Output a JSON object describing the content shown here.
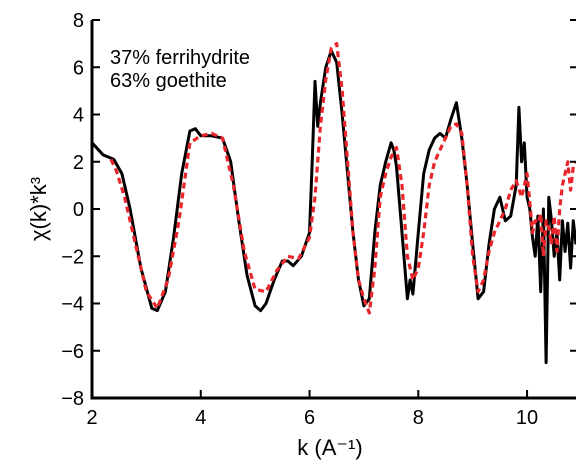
{
  "chart_data": {
    "type": "line",
    "xlabel": "k (A⁻¹)",
    "ylabel": "χ(k)*k³",
    "xlim": [
      2,
      10.9
    ],
    "ylim": [
      -8,
      8
    ],
    "x_ticks": [
      "2",
      "4",
      "6",
      "8",
      "10"
    ],
    "y_ticks": [
      "−8",
      "−6",
      "−4",
      "−2",
      "0",
      "2",
      "4",
      "6",
      "8"
    ],
    "annotations": [
      "37% ferrihydrite",
      "63% goethite"
    ],
    "grid": false,
    "series": [
      {
        "color": "#000000",
        "style": "solid",
        "x": [
          2.0,
          2.2,
          2.4,
          2.55,
          2.7,
          2.9,
          3.1,
          3.2,
          3.35,
          3.5,
          3.65,
          3.8,
          3.9,
          4.0,
          4.2,
          4.4,
          4.55,
          4.7,
          4.85,
          5.0,
          5.1,
          5.2,
          5.35,
          5.5,
          5.6,
          5.7,
          5.85,
          6.0,
          6.05,
          6.1,
          6.15,
          6.2,
          6.3,
          6.4,
          6.5,
          6.6,
          6.7,
          6.8,
          6.9,
          7.0,
          7.1,
          7.2,
          7.3,
          7.4,
          7.5,
          7.55,
          7.6,
          7.7,
          7.8,
          7.85,
          7.9,
          8.0,
          8.1,
          8.2,
          8.3,
          8.4,
          8.5,
          8.6,
          8.7,
          8.8,
          8.9,
          9.0,
          9.1,
          9.2,
          9.3,
          9.4,
          9.5,
          9.6,
          9.7,
          9.8,
          9.85,
          9.9,
          9.95,
          10.0,
          10.05,
          10.1,
          10.15,
          10.2,
          10.25,
          10.3,
          10.35,
          10.4,
          10.45,
          10.5,
          10.55,
          10.6,
          10.65,
          10.7,
          10.75,
          10.8,
          10.85,
          10.9
        ],
        "y": [
          2.8,
          2.3,
          2.1,
          1.5,
          0.0,
          -2.5,
          -4.2,
          -4.3,
          -3.5,
          -1.2,
          1.5,
          3.3,
          3.4,
          3.1,
          3.1,
          3.0,
          2.0,
          -0.5,
          -2.8,
          -4.1,
          -4.3,
          -4.0,
          -3.0,
          -2.2,
          -2.2,
          -2.4,
          -2.0,
          -1.0,
          2.0,
          5.4,
          3.5,
          4.5,
          6.0,
          6.7,
          6.2,
          4.0,
          1.5,
          -1.0,
          -3.0,
          -4.1,
          -3.8,
          -1.0,
          1.0,
          2.0,
          2.8,
          2.5,
          1.8,
          -1.0,
          -3.8,
          -3.0,
          -3.6,
          -1.0,
          1.5,
          2.5,
          3.0,
          3.2,
          3.0,
          3.8,
          4.5,
          3.0,
          1.0,
          -1.5,
          -3.8,
          -3.5,
          -1.5,
          0.0,
          0.5,
          -0.5,
          -0.3,
          1.0,
          4.3,
          2.0,
          2.8,
          0.5,
          0.0,
          -1.2,
          -2.0,
          -0.3,
          -3.5,
          0.0,
          -6.5,
          0.5,
          -0.5,
          -2.0,
          -1.0,
          -3.0,
          -0.5,
          -1.8,
          -0.6,
          -2.5,
          -0.5,
          -1.5
        ]
      },
      {
        "color": "#e8262c",
        "style": "dashed",
        "x": [
          2.35,
          2.45,
          2.6,
          2.8,
          3.0,
          3.2,
          3.4,
          3.6,
          3.8,
          4.0,
          4.2,
          4.4,
          4.6,
          4.8,
          5.0,
          5.2,
          5.4,
          5.6,
          5.8,
          6.0,
          6.1,
          6.2,
          6.3,
          6.4,
          6.5,
          6.6,
          6.7,
          6.8,
          6.9,
          7.0,
          7.1,
          7.2,
          7.3,
          7.4,
          7.5,
          7.6,
          7.7,
          7.8,
          7.9,
          8.0,
          8.1,
          8.2,
          8.3,
          8.4,
          8.5,
          8.6,
          8.7,
          8.8,
          8.9,
          9.0,
          9.1,
          9.2,
          9.3,
          9.4,
          9.5,
          9.6,
          9.7,
          9.8,
          9.9,
          10.0,
          10.05,
          10.1,
          10.15,
          10.2,
          10.25,
          10.3,
          10.35,
          10.4,
          10.45,
          10.5,
          10.55,
          10.6,
          10.65,
          10.7,
          10.75,
          10.8,
          10.85,
          10.9
        ],
        "y": [
          2.1,
          1.6,
          0.5,
          -1.5,
          -3.5,
          -4.2,
          -3.0,
          -0.5,
          2.8,
          3.1,
          3.2,
          3.0,
          1.0,
          -1.8,
          -3.4,
          -3.5,
          -2.6,
          -2.0,
          -2.1,
          -1.2,
          0.5,
          3.5,
          5.5,
          6.8,
          7.0,
          5.0,
          2.0,
          -1.0,
          -3.0,
          -3.8,
          -4.4,
          -2.5,
          0.5,
          1.5,
          2.2,
          2.6,
          1.0,
          -2.0,
          -3.0,
          -2.5,
          -1.0,
          1.0,
          2.0,
          2.5,
          3.0,
          3.5,
          3.6,
          3.2,
          1.0,
          -2.0,
          -3.5,
          -3.0,
          -1.8,
          -1.0,
          -0.5,
          0.0,
          0.8,
          1.2,
          0.5,
          1.5,
          0.3,
          -1.0,
          -0.5,
          -0.6,
          -0.2,
          -2.0,
          -0.5,
          -0.8,
          -1.5,
          -0.3,
          -1.8,
          0.0,
          1.0,
          1.5,
          2.0,
          0.8,
          1.8,
          2.0
        ]
      }
    ]
  }
}
